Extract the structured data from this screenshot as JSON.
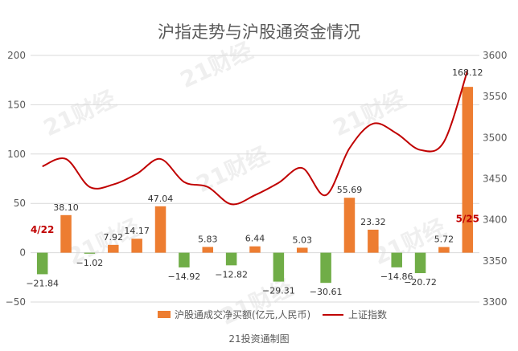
{
  "colors": {
    "bar_positive": "#ED7D31",
    "bar_negative": "#70AD47",
    "line": "#C00000",
    "marker_label": "#C00000",
    "grid": "#D9D9D9",
    "axis_text": "#595959",
    "title": "#595959",
    "watermark": "#D0D0D0"
  },
  "watermark_text": "21财经",
  "chart_data": {
    "type": "bar",
    "title": "沪指走势与沪股通资金情况",
    "source": "21投资通制图",
    "legend_position": "bottom",
    "grid": true,
    "y_left_ticks": [
      "200",
      "150",
      "100",
      "50",
      "0",
      "−50"
    ],
    "y_left_lim": [
      -50,
      200
    ],
    "y_right_ticks": [
      "3600",
      "3550",
      "3500",
      "3450",
      "3400",
      "3350",
      "3300"
    ],
    "y_right_lim": [
      3300,
      3600
    ],
    "series": [
      {
        "name": "沪股通成交净买额(亿元,人民币)",
        "type": "bar",
        "axis": "left",
        "values": [
          -21.84,
          38.1,
          -1.02,
          7.92,
          14.17,
          47.04,
          -14.92,
          5.83,
          -12.82,
          6.44,
          -29.31,
          5.03,
          -30.61,
          55.69,
          23.32,
          -14.86,
          -20.72,
          5.72,
          168.12
        ],
        "labels": [
          "−21.84",
          "38.10",
          "−1.02",
          "7.92",
          "14.17",
          "47.04",
          "−14.92",
          "5.83",
          "−12.82",
          "6.44",
          "−29.31",
          "5.03",
          "−30.61",
          "55.69",
          "23.32",
          "−14.86",
          "−20.72",
          "5.72",
          "168.12"
        ]
      },
      {
        "name": "上证指数",
        "type": "line",
        "axis": "right",
        "values": [
          3465,
          3474,
          3440,
          3443,
          3456,
          3474,
          3446,
          3440,
          3419,
          3430,
          3445,
          3463,
          3430,
          3487,
          3517,
          3505,
          3485,
          3495,
          3582
        ]
      }
    ],
    "annotations": [
      {
        "text": "4/22",
        "index": 0
      },
      {
        "text": "5/25",
        "index": 18
      }
    ]
  }
}
